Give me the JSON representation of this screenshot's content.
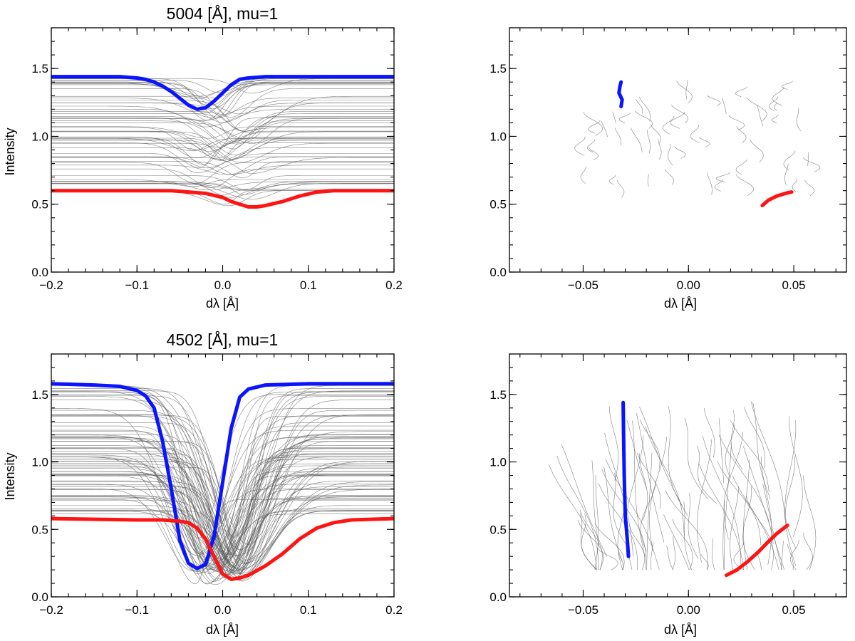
{
  "chart_data": [
    {
      "id": "p5004_profiles",
      "type": "line",
      "title": "5004 [Å], mu=1",
      "xlabel": "dλ [Å]",
      "ylabel": "Intensity",
      "xlim": [
        -0.2,
        0.2
      ],
      "ylim": [
        0.0,
        1.8
      ],
      "xticks": [
        -0.2,
        -0.1,
        0.0,
        0.1,
        0.2
      ],
      "xtick_labels": [
        "−0.2",
        "−0.1",
        "0.0",
        "0.1",
        "0.2"
      ],
      "yticks": [
        0.0,
        0.5,
        1.0,
        1.5
      ],
      "ytick_labels": [
        "0.0",
        "0.5",
        "1.0",
        "1.5"
      ],
      "grid": false,
      "background_lines": {
        "count": 60,
        "color": "#5a5a5a",
        "continuum_range": [
          0.6,
          1.44
        ],
        "center_range": [
          -0.035,
          0.035
        ],
        "width_range": [
          0.022,
          0.04
        ],
        "depth_fraction_range": [
          0.06,
          0.2
        ]
      },
      "series": [
        {
          "color": "#0a14ff",
          "x": [
            -0.2,
            -0.12,
            -0.1,
            -0.09,
            -0.08,
            -0.07,
            -0.06,
            -0.05,
            -0.04,
            -0.03,
            -0.02,
            -0.01,
            0.0,
            0.01,
            0.02,
            0.03,
            0.05,
            0.1,
            0.2
          ],
          "y": [
            1.44,
            1.44,
            1.43,
            1.42,
            1.4,
            1.37,
            1.33,
            1.28,
            1.23,
            1.2,
            1.21,
            1.26,
            1.32,
            1.38,
            1.42,
            1.43,
            1.44,
            1.44,
            1.44
          ]
        },
        {
          "color": "#ff1414",
          "x": [
            -0.2,
            -0.1,
            -0.06,
            -0.04,
            -0.02,
            0.0,
            0.01,
            0.02,
            0.03,
            0.04,
            0.05,
            0.07,
            0.09,
            0.11,
            0.13,
            0.2
          ],
          "y": [
            0.6,
            0.6,
            0.6,
            0.59,
            0.58,
            0.55,
            0.52,
            0.5,
            0.48,
            0.48,
            0.49,
            0.52,
            0.56,
            0.59,
            0.6,
            0.6
          ]
        }
      ]
    },
    {
      "id": "p5004_bisector",
      "type": "line",
      "xlabel": "dλ [Å]",
      "xlim": [
        -0.085,
        0.075
      ],
      "ylim": [
        0.0,
        1.8
      ],
      "xticks": [
        -0.05,
        0.0,
        0.05
      ],
      "xtick_labels": [
        "−0.05",
        "0.00",
        "0.05"
      ],
      "yticks": [
        0.0,
        0.5,
        1.0,
        1.5
      ],
      "ytick_labels": [
        "0.0",
        "0.5",
        "1.0",
        "1.5"
      ],
      "grid": false,
      "background_lines": {
        "count": 55,
        "color": "#5a5a5a",
        "x_range": [
          -0.05,
          0.06
        ],
        "y_range": [
          0.55,
          1.42
        ],
        "length_range": [
          0.06,
          0.18
        ]
      },
      "series": [
        {
          "color": "#0a14ff",
          "x": [
            -0.032,
            -0.0315,
            -0.033,
            -0.0325,
            -0.032
          ],
          "y": [
            1.22,
            1.27,
            1.32,
            1.37,
            1.4
          ]
        },
        {
          "color": "#ff1414",
          "x": [
            0.035,
            0.038,
            0.042,
            0.046,
            0.049
          ],
          "y": [
            0.49,
            0.53,
            0.56,
            0.58,
            0.59
          ]
        }
      ]
    },
    {
      "id": "p4502_profiles",
      "type": "line",
      "title": "4502 [Å], mu=1",
      "xlabel": "dλ [Å]",
      "ylabel": "Intensity",
      "xlim": [
        -0.2,
        0.2
      ],
      "ylim": [
        0.0,
        1.8
      ],
      "xticks": [
        -0.2,
        -0.1,
        0.0,
        0.1,
        0.2
      ],
      "xtick_labels": [
        "−0.2",
        "−0.1",
        "0.0",
        "0.1",
        "0.2"
      ],
      "yticks": [
        0.0,
        0.5,
        1.0,
        1.5
      ],
      "ytick_labels": [
        "0.0",
        "0.5",
        "1.0",
        "1.5"
      ],
      "grid": false,
      "background_lines": {
        "count": 80,
        "color": "#5a5a5a",
        "continuum_range": [
          0.58,
          1.58
        ],
        "center_range": [
          -0.035,
          0.03
        ],
        "width_range": [
          0.028,
          0.05
        ],
        "depth_fraction_range": [
          0.7,
          0.88
        ]
      },
      "series": [
        {
          "color": "#0a14ff",
          "x": [
            -0.2,
            -0.15,
            -0.12,
            -0.1,
            -0.09,
            -0.08,
            -0.07,
            -0.06,
            -0.05,
            -0.04,
            -0.03,
            -0.02,
            -0.01,
            0.0,
            0.01,
            0.02,
            0.03,
            0.05,
            0.1,
            0.2
          ],
          "y": [
            1.58,
            1.57,
            1.56,
            1.53,
            1.49,
            1.4,
            1.15,
            0.8,
            0.42,
            0.25,
            0.21,
            0.24,
            0.45,
            0.85,
            1.25,
            1.48,
            1.54,
            1.57,
            1.58,
            1.58
          ]
        },
        {
          "color": "#ff1414",
          "x": [
            -0.2,
            -0.1,
            -0.07,
            -0.05,
            -0.04,
            -0.03,
            -0.02,
            -0.01,
            0.0,
            0.01,
            0.02,
            0.03,
            0.05,
            0.07,
            0.09,
            0.11,
            0.13,
            0.15,
            0.2
          ],
          "y": [
            0.58,
            0.57,
            0.57,
            0.56,
            0.55,
            0.51,
            0.43,
            0.3,
            0.17,
            0.13,
            0.14,
            0.16,
            0.23,
            0.32,
            0.43,
            0.51,
            0.55,
            0.57,
            0.58
          ]
        }
      ]
    },
    {
      "id": "p4502_bisector",
      "type": "line",
      "xlabel": "dλ [Å]",
      "xlim": [
        -0.085,
        0.075
      ],
      "ylim": [
        0.0,
        1.8
      ],
      "xticks": [
        -0.05,
        0.0,
        0.05
      ],
      "xtick_labels": [
        "−0.05",
        "0.00",
        "0.05"
      ],
      "yticks": [
        0.0,
        0.5,
        1.0,
        1.5
      ],
      "ytick_labels": [
        "0.0",
        "0.5",
        "1.0",
        "1.5"
      ],
      "grid": false,
      "background_lines": {
        "count": 80,
        "color": "#5a5a5a",
        "x_range": [
          -0.045,
          0.058
        ],
        "y_range": [
          0.2,
          1.45
        ],
        "length_range": [
          0.35,
          1.1
        ]
      },
      "series": [
        {
          "color": "#0a14ff",
          "x": [
            -0.031,
            -0.0308,
            -0.0305,
            -0.03,
            -0.029,
            -0.0285
          ],
          "y": [
            1.44,
            1.2,
            0.9,
            0.6,
            0.42,
            0.3
          ]
        },
        {
          "color": "#ff1414",
          "x": [
            0.018,
            0.023,
            0.028,
            0.033,
            0.038,
            0.042,
            0.047
          ],
          "y": [
            0.16,
            0.2,
            0.26,
            0.33,
            0.41,
            0.47,
            0.53
          ]
        }
      ]
    }
  ]
}
